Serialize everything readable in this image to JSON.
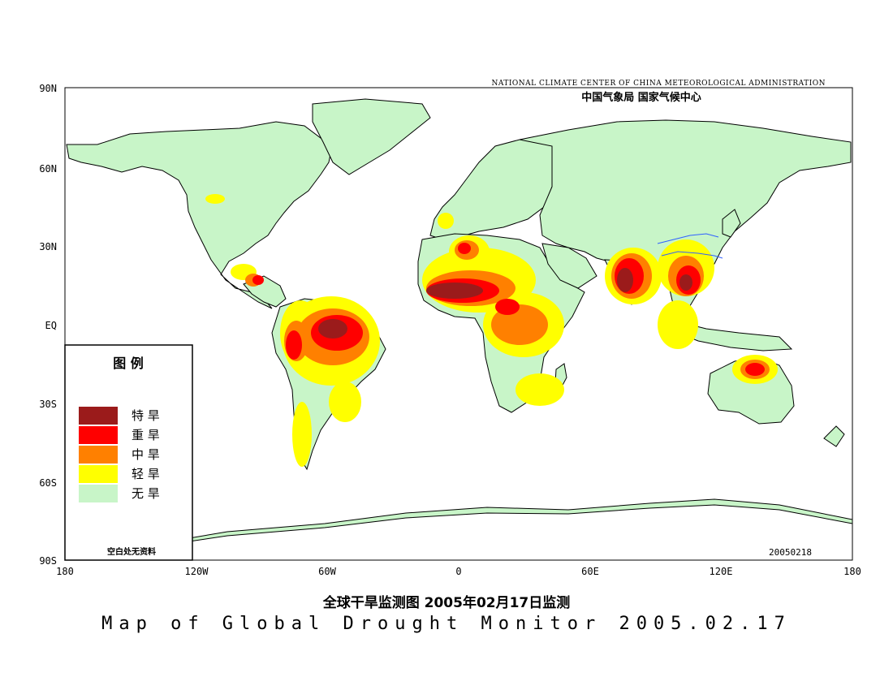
{
  "header": {
    "agency_en": "NATIONAL CLIMATE CENTER OF CHINA METEOROLOGICAL ADMINISTRATION",
    "agency_cn": "中国气象局   国家气候中心"
  },
  "axes": {
    "lat_labels": [
      "90N",
      "60N",
      "30N",
      "EQ",
      "30S",
      "60S",
      "90S"
    ],
    "lon_labels": [
      "180",
      "120W",
      "60W",
      "0",
      "60E",
      "120E",
      "180"
    ]
  },
  "legend": {
    "title": "图    例",
    "items": [
      {
        "label": "特  旱",
        "color": "#9b1b1b"
      },
      {
        "label": "重  旱",
        "color": "#ff0000"
      },
      {
        "label": "中  旱",
        "color": "#ff8000"
      },
      {
        "label": "轻  旱",
        "color": "#ffff00"
      },
      {
        "label": "无  旱",
        "color": "#c8f5c8"
      }
    ],
    "note": "空白处无资料"
  },
  "date_code": "20050218",
  "titles": {
    "cn": "全球干旱监测图   2005年02月17日监测",
    "en": "Map of Global Drought Monitor 2005.02.17"
  },
  "colors": {
    "land": "#c8f5c8",
    "light": "#ffff00",
    "moderate": "#ff8000",
    "severe": "#ff0000",
    "extreme": "#9b1b1b",
    "coast": "#000000",
    "rivers": "#3060ff"
  }
}
